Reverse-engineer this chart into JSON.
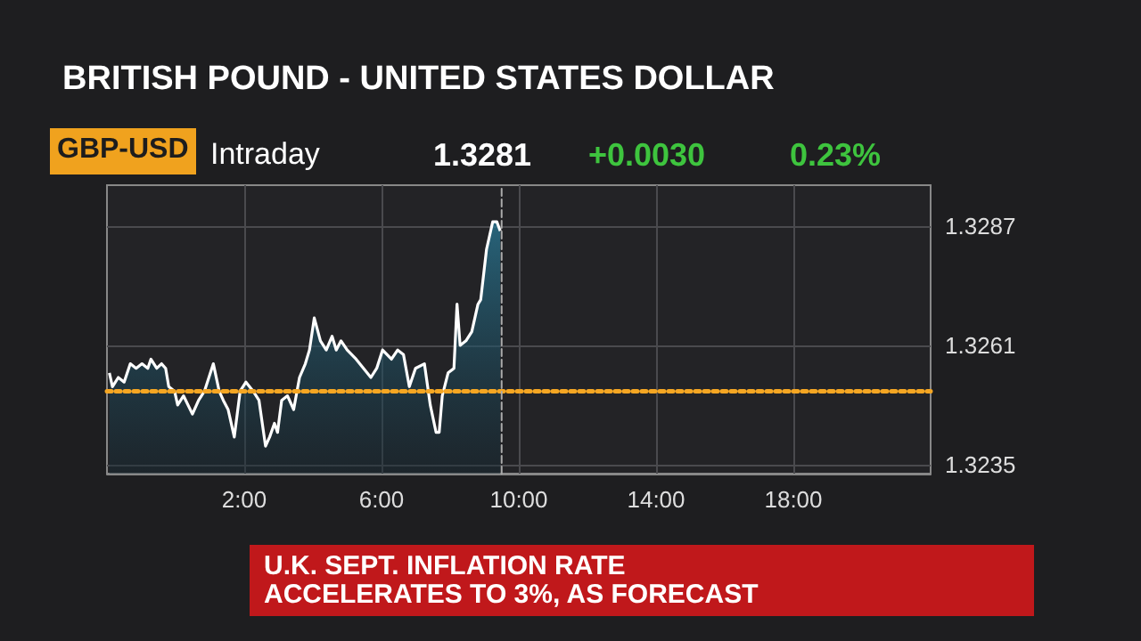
{
  "chart_data": {
    "type": "area",
    "title": "BRITISH POUND - UNITED STATES DOLLAR",
    "annotations": [
      "GBP-USD",
      "Intraday",
      "1.3281",
      "+0.0030",
      "0.23%",
      "U.K. SEPT. INFLATION RATE ACCELERATES TO 3%, AS FORECAST"
    ],
    "x": [
      -1.93,
      -1.84,
      -1.67,
      -1.5,
      -1.32,
      -1.15,
      -0.98,
      -0.81,
      -0.72,
      -0.55,
      -0.41,
      -0.29,
      -0.2,
      -0.03,
      0.06,
      0.23,
      0.49,
      0.67,
      0.84,
      1.1,
      1.27,
      1.39,
      1.53,
      1.71,
      1.88,
      2.05,
      2.26,
      2.43,
      2.62,
      2.74,
      2.88,
      2.97,
      3.09,
      3.26,
      3.44,
      3.61,
      3.78,
      3.9,
      4.04,
      4.22,
      4.39,
      4.56,
      4.68,
      4.82,
      5.0,
      5.26,
      5.69,
      5.86,
      6.03,
      6.29,
      6.47,
      6.64,
      6.81,
      6.99,
      7.25,
      7.42,
      7.59,
      7.68,
      7.77,
      7.94,
      8.11,
      8.2,
      8.29,
      8.46,
      8.63,
      8.81,
      8.89,
      9.06,
      9.24,
      9.36,
      9.46
    ],
    "series": [
      {
        "color": "#2a7f9e",
        "values": [
          1.3255,
          1.3252,
          1.3254,
          1.3253,
          1.3257,
          1.3256,
          1.3257,
          1.3256,
          1.3258,
          1.3256,
          1.3257,
          1.3256,
          1.3252,
          1.3251,
          1.3248,
          1.325,
          1.3246,
          1.3249,
          1.3251,
          1.3257,
          1.3251,
          1.3249,
          1.3247,
          1.3241,
          1.3251,
          1.3253,
          1.3251,
          1.3249,
          1.3239,
          1.3241,
          1.3244,
          1.3242,
          1.3249,
          1.325,
          1.3247,
          1.3254,
          1.3257,
          1.326,
          1.3267,
          1.3262,
          1.326,
          1.3263,
          1.326,
          1.3262,
          1.326,
          1.3258,
          1.3254,
          1.3256,
          1.326,
          1.3258,
          1.326,
          1.3259,
          1.3252,
          1.3256,
          1.3257,
          1.3248,
          1.3242,
          1.3242,
          1.325,
          1.3255,
          1.3256,
          1.327,
          1.3261,
          1.3262,
          1.3264,
          1.327,
          1.3271,
          1.3282,
          1.3288,
          1.3288,
          1.3286
        ]
      }
    ],
    "xlim": [
      -2,
      22
    ],
    "xticks": [
      {
        "value": 2,
        "label": "2:00"
      },
      {
        "value": 6,
        "label": "6:00"
      },
      {
        "value": 10,
        "label": "10:00"
      },
      {
        "value": 14,
        "label": "14:00"
      },
      {
        "value": 18,
        "label": "18:00"
      }
    ],
    "ylim": [
      1.3233,
      1.3296
    ],
    "yticks": [
      1.3235,
      1.3261,
      1.3287
    ],
    "ref_lines": [
      {
        "axis": "y",
        "value": 1.3251,
        "color": "#f5a623",
        "line_style": "dotted"
      },
      {
        "axis": "x",
        "value": 9.5,
        "color": "#aaaaaa",
        "line_style": "dashed"
      }
    ],
    "grid": true,
    "marker": "none",
    "line_style": "solid"
  }
}
